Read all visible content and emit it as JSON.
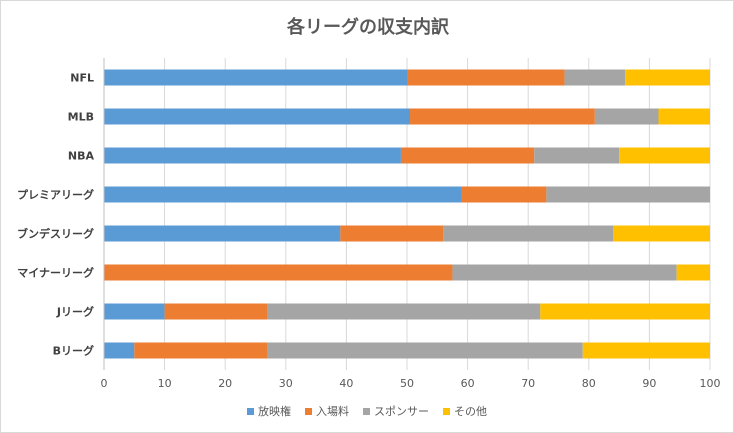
{
  "chart_data": {
    "type": "bar",
    "orientation": "horizontal",
    "stacked": true,
    "title": "各リーグの収支内訳",
    "categories": [
      "NFL",
      "MLB",
      "NBA",
      "プレミアリーグ",
      "ブンデスリーグ",
      "マイナーリーグ",
      "Jリーグ",
      "Bリーグ"
    ],
    "series": [
      {
        "name": "放映権",
        "color": "#5b9bd5",
        "values": [
          50,
          50.5,
          49,
          59,
          39,
          0,
          10,
          5
        ]
      },
      {
        "name": "入場料",
        "color": "#ed7d31",
        "values": [
          26,
          30.5,
          22,
          14,
          17,
          57.5,
          17,
          22
        ]
      },
      {
        "name": "スポンサー",
        "color": "#a5a5a5",
        "values": [
          10,
          10.5,
          14,
          27,
          28,
          37,
          45,
          52
        ]
      },
      {
        "name": "その他",
        "color": "#ffc000",
        "values": [
          14,
          8.5,
          15,
          0,
          16,
          5.5,
          28,
          21
        ]
      }
    ],
    "xlim": [
      0,
      100
    ],
    "xticks": [
      "0",
      "10",
      "20",
      "30",
      "40",
      "50",
      "60",
      "70",
      "80",
      "90",
      "100"
    ],
    "grid": "vertical",
    "legend_position": "bottom"
  }
}
